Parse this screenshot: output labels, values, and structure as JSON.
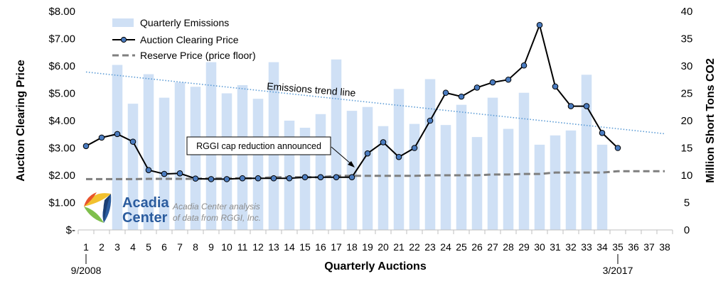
{
  "chart_data": {
    "type": "bar+line",
    "x": [
      1,
      2,
      3,
      4,
      5,
      6,
      7,
      8,
      9,
      10,
      11,
      12,
      13,
      14,
      15,
      16,
      17,
      18,
      19,
      20,
      21,
      22,
      23,
      24,
      25,
      26,
      27,
      28,
      29,
      30,
      31,
      32,
      33,
      34,
      35,
      36,
      37,
      38
    ],
    "xlabel": "Quarterly Auctions",
    "x_start_label": "9/2008",
    "x_end_label": "3/2017",
    "y_left": {
      "label": "Auction Clearing Price",
      "min": 0,
      "max": 8,
      "ticks": [
        "$-",
        "$1.00",
        "$2.00",
        "$3.00",
        "$4.00",
        "$5.00",
        "$6.00",
        "$7.00",
        "$8.00"
      ]
    },
    "y_right": {
      "label": "Million Short Tons CO2",
      "min": 0,
      "max": 40,
      "ticks": [
        "0",
        "5",
        "10",
        "15",
        "20",
        "25",
        "30",
        "35",
        "40"
      ]
    },
    "series": [
      {
        "name": "Quarterly Emissions",
        "type": "bar",
        "axis": "right",
        "color": "#cfe0f5",
        "x": [
          3,
          4,
          5,
          6,
          7,
          8,
          9,
          10,
          11,
          12,
          13,
          14,
          15,
          16,
          17,
          18,
          19,
          20,
          21,
          22,
          23,
          24,
          25,
          26,
          27,
          28,
          29,
          30,
          31,
          32,
          33,
          34
        ],
        "values": [
          30.2,
          23.1,
          28.5,
          24.2,
          27.0,
          26.2,
          30.7,
          25.0,
          26.5,
          24.0,
          30.7,
          20.0,
          18.7,
          21.2,
          31.2,
          21.8,
          22.5,
          19.0,
          25.8,
          19.4,
          27.6,
          19.2,
          22.9,
          17.0,
          24.2,
          18.5,
          25.1,
          15.6,
          17.3,
          18.2,
          28.4,
          15.6
        ]
      },
      {
        "name": "Auction Clearing Price",
        "type": "line",
        "axis": "left",
        "color": "#000000",
        "marker_color": "#4a7bbf",
        "x": [
          1,
          2,
          3,
          4,
          5,
          6,
          7,
          8,
          9,
          10,
          11,
          12,
          13,
          14,
          15,
          16,
          17,
          18,
          19,
          20,
          21,
          22,
          23,
          24,
          25,
          26,
          27,
          28,
          29,
          30,
          31,
          32,
          33,
          34,
          35
        ],
        "values": [
          3.07,
          3.38,
          3.51,
          3.23,
          2.19,
          2.05,
          2.07,
          1.88,
          1.86,
          1.86,
          1.89,
          1.89,
          1.89,
          1.89,
          1.93,
          1.93,
          1.93,
          1.93,
          2.8,
          3.21,
          2.67,
          3.0,
          4.0,
          5.02,
          4.88,
          5.21,
          5.4,
          5.5,
          6.02,
          7.5,
          5.25,
          4.53,
          4.53,
          3.55,
          3.0
        ]
      },
      {
        "name": "Reserve Price (price floor)",
        "type": "line",
        "axis": "left",
        "color": "#7f7f7f",
        "dash": true,
        "x": [
          1,
          2,
          3,
          4,
          5,
          6,
          7,
          8,
          9,
          10,
          11,
          12,
          13,
          14,
          15,
          16,
          17,
          18,
          19,
          20,
          21,
          22,
          23,
          24,
          25,
          26,
          27,
          28,
          29,
          30,
          31,
          32,
          33,
          34,
          35,
          36,
          37,
          38
        ],
        "values": [
          1.86,
          1.86,
          1.86,
          1.86,
          1.87,
          1.87,
          1.87,
          1.87,
          1.89,
          1.89,
          1.89,
          1.89,
          1.93,
          1.93,
          1.93,
          1.93,
          1.98,
          1.98,
          1.98,
          1.98,
          1.98,
          1.98,
          2.0,
          2.0,
          2.0,
          2.0,
          2.03,
          2.03,
          2.05,
          2.05,
          2.1,
          2.1,
          2.1,
          2.1,
          2.15,
          2.15,
          2.15,
          2.15
        ]
      },
      {
        "name": "Emissions trend line",
        "type": "trend",
        "axis": "right",
        "color": "#5b9bd5",
        "dotted": true,
        "x": [
          1,
          38
        ],
        "values": [
          28.9,
          17.6
        ]
      }
    ],
    "legend": {
      "position": "top-left",
      "entries": [
        "Quarterly Emissions",
        "Auction Clearing Price",
        "Reserve Price (price floor)"
      ]
    },
    "annotations": {
      "trend_label": "Emissions trend line",
      "cap_reduction": "RGGI cap reduction announced",
      "cap_reduction_at_x": 18
    }
  },
  "branding": {
    "logo_line1": "Acadia",
    "logo_line2": "Center",
    "source_line1": "Acadia Center analysis",
    "source_line2": "of data from RGGI, Inc.",
    "logo_colors": [
      "#f2c12e",
      "#e8542b",
      "#7fbf4d",
      "#2b5c9e",
      "#1c3f73"
    ]
  }
}
